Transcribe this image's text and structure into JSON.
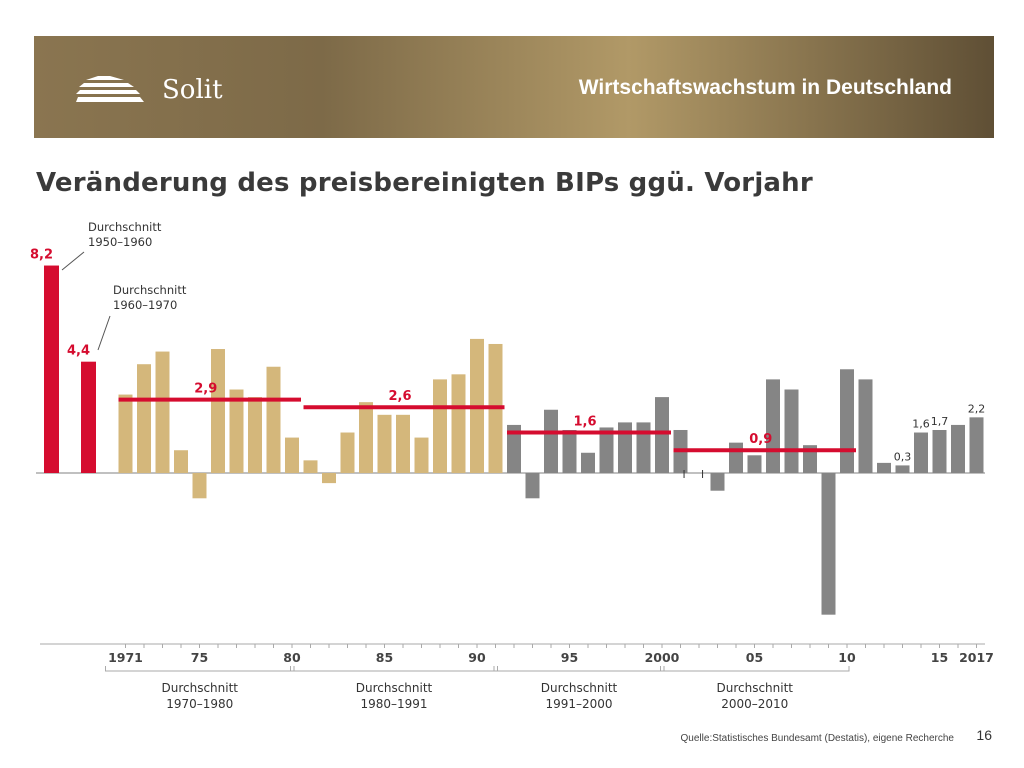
{
  "header": {
    "logo_text": "Solit",
    "title": "Wirtschaftswachstum in Deutschland"
  },
  "footer": {
    "source": "Quelle:Statistisches Bundesamt (Destatis), eigene Recherche",
    "page_number": "16"
  },
  "colors": {
    "decade_avg_bar": "#d50c2f",
    "bar_1971_1991": "#d4b77b",
    "bar_1992_2017": "#858585",
    "average_line": "#d50c2f",
    "baseline": "#9a9a9a"
  },
  "chart_data": {
    "type": "bar",
    "title": "Veränderung des preisbereinigten BIPs ggü. Vorjahr",
    "ylim": [
      -7.2,
      9.0
    ],
    "decade_bars": [
      {
        "value": 8.2,
        "label": "8,2",
        "annotation": [
          "Durchschnitt",
          "1950–1960"
        ]
      },
      {
        "value": 4.4,
        "label": "4,4",
        "annotation": [
          "Durchschnitt",
          "1960–1970"
        ]
      }
    ],
    "years": [
      1971,
      1972,
      1973,
      1974,
      1975,
      1976,
      1977,
      1978,
      1979,
      1980,
      1981,
      1982,
      1983,
      1984,
      1985,
      1986,
      1987,
      1988,
      1989,
      1990,
      1991,
      1992,
      1993,
      1994,
      1995,
      1996,
      1997,
      1998,
      1999,
      2000,
      2001,
      2002,
      2003,
      2004,
      2005,
      2006,
      2007,
      2008,
      2009,
      2010,
      2011,
      2012,
      2013,
      2014,
      2015,
      2016,
      2017
    ],
    "values": [
      3.1,
      4.3,
      4.8,
      0.9,
      -1.0,
      4.9,
      3.3,
      3.0,
      4.2,
      1.4,
      0.5,
      -0.4,
      1.6,
      2.8,
      2.3,
      2.3,
      1.4,
      3.7,
      3.9,
      5.3,
      5.1,
      1.9,
      -1.0,
      2.5,
      1.7,
      0.8,
      1.8,
      2.0,
      2.0,
      3.0,
      1.7,
      0.0,
      -0.7,
      1.2,
      0.7,
      3.7,
      3.3,
      1.1,
      -5.6,
      4.1,
      3.7,
      0.4,
      0.3,
      1.6,
      1.7,
      1.9,
      2.2
    ],
    "value_labels": [
      {
        "year": 2013,
        "label": "0,3"
      },
      {
        "year": 2014,
        "label": "1,6"
      },
      {
        "year": 2015,
        "label": "1,7"
      },
      {
        "year": 2017,
        "label": "2,2"
      }
    ],
    "averages": [
      {
        "period": "1970–1980",
        "from": 1971,
        "to": 1980,
        "value": 2.9,
        "label": "2,9"
      },
      {
        "period": "1980–1991",
        "from": 1981,
        "to": 1991,
        "value": 2.6,
        "label": "2,6"
      },
      {
        "period": "1991–2000",
        "from": 1992,
        "to": 2000,
        "value": 1.6,
        "label": "1,6"
      },
      {
        "period": "2000–2010",
        "from": 2001,
        "to": 2010,
        "value": 0.9,
        "label": "0,9"
      }
    ],
    "period_labels": [
      {
        "text": [
          "Durchschnitt",
          "1970–1980"
        ],
        "from": 1971,
        "to": 1980
      },
      {
        "text": [
          "Durchschnitt",
          "1980–1991"
        ],
        "from": 1981,
        "to": 1991
      },
      {
        "text": [
          "Durchschnitt",
          "1991–2000"
        ],
        "from": 1992,
        "to": 2000
      },
      {
        "text": [
          "Durchschnitt",
          "2000–2010"
        ],
        "from": 2001,
        "to": 2010
      }
    ],
    "x_tick_labels": [
      {
        "year": 1971,
        "label": "1971"
      },
      {
        "year": 1975,
        "label": "75"
      },
      {
        "year": 1980,
        "label": "80"
      },
      {
        "year": 1985,
        "label": "85"
      },
      {
        "year": 1990,
        "label": "90"
      },
      {
        "year": 1995,
        "label": "95"
      },
      {
        "year": 2000,
        "label": "2000"
      },
      {
        "year": 2005,
        "label": "05"
      },
      {
        "year": 2010,
        "label": "10"
      },
      {
        "year": 2015,
        "label": "15"
      },
      {
        "year": 2017,
        "label": "2017"
      }
    ]
  }
}
